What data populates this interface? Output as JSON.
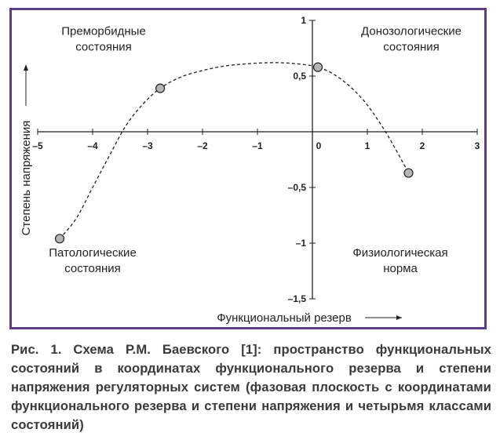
{
  "chart_data": {
    "type": "scatter",
    "xlabel": "Функциональный резерв",
    "ylabel": "Степень напряжения",
    "xlim": [
      -5,
      3
    ],
    "ylim": [
      -1.5,
      1
    ],
    "x_ticks": [
      -5,
      -4,
      -3,
      -2,
      -1,
      0,
      1,
      2,
      3
    ],
    "x_tick_labels": [
      "–5",
      "–4",
      "–3",
      "–2",
      "–1",
      "0",
      "1",
      "2",
      "3"
    ],
    "y_ticks": [
      -1.5,
      -1,
      -0.5,
      0,
      0.5,
      1
    ],
    "y_tick_labels": [
      "–1,5",
      "–1",
      "–0,5",
      "0",
      "0,5",
      "1"
    ],
    "grid": false,
    "points": [
      {
        "x": -4.6,
        "y": -0.96
      },
      {
        "x": -2.77,
        "y": 0.39
      },
      {
        "x": 0.1,
        "y": 0.58
      },
      {
        "x": 1.75,
        "y": -0.37
      }
    ],
    "trend_curve": {
      "style": "dashed",
      "x": [
        -4.6,
        -4.3,
        -4.0,
        -3.7,
        -3.4,
        -3.1,
        -2.77,
        -2.4,
        -2.0,
        -1.6,
        -1.2,
        -0.8,
        -0.4,
        0.1,
        0.5,
        0.9,
        1.2,
        1.45,
        1.75
      ],
      "y": [
        -0.96,
        -0.78,
        -0.5,
        -0.22,
        0.05,
        0.24,
        0.39,
        0.49,
        0.55,
        0.59,
        0.61,
        0.62,
        0.615,
        0.58,
        0.48,
        0.3,
        0.1,
        -0.1,
        -0.37
      ]
    },
    "annotations": [
      {
        "lines": [
          "Преморбидные",
          "состояния"
        ],
        "x": -3.8,
        "y": 0.87
      },
      {
        "lines": [
          "Донозологические",
          "состояния"
        ],
        "x": 1.8,
        "y": 0.87
      },
      {
        "lines": [
          "Патологические",
          "состояния"
        ],
        "x": -4.0,
        "y": -1.12
      },
      {
        "lines": [
          "Физиологическая",
          "норма"
        ],
        "x": 1.6,
        "y": -1.12
      }
    ]
  },
  "caption": "Рис. 1. Схема Р.М. Баевского [1]: пространство функциональных состояний в координатах функционального резерва и степени напряжения регуляторных систем (фазовая плоскость с координатами функционального резерва и степени напряжения и четырьмя классами состояний)",
  "colors": {
    "frame": "#5b3f8a",
    "point_fill": "#b5b5b5",
    "ink": "#222222"
  }
}
